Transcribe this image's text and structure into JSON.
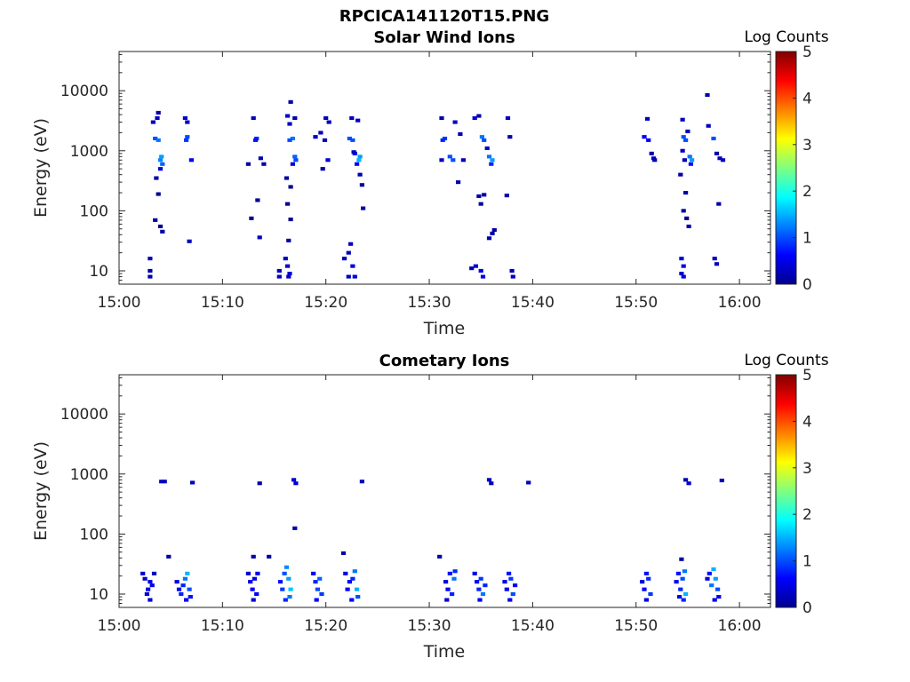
{
  "figure": {
    "title": "RPCICA141120T15.PNG"
  },
  "colorbar": {
    "label": "Log Counts",
    "ticks": [
      "0",
      "1",
      "2",
      "3",
      "4",
      "5"
    ],
    "range": [
      0,
      5
    ],
    "colormap": "jet",
    "colors": [
      "#00008f",
      "#0000ff",
      "#00ffff",
      "#ffff00",
      "#ff0000",
      "#800000"
    ]
  },
  "chart_data": [
    {
      "type": "heatmap",
      "title": "Solar Wind Ions",
      "xlabel": "Time",
      "ylabel": "Energy (eV)",
      "x_ticks": [
        "15:00",
        "15:10",
        "15:20",
        "15:30",
        "15:40",
        "15:50",
        "16:00"
      ],
      "y_ticks": [
        "10",
        "100",
        "1000",
        "10000"
      ],
      "y_scale": "log",
      "xlim_minutes": [
        0,
        63
      ],
      "ylim": [
        6,
        45000
      ],
      "cells": [
        [
          3.0,
          16,
          0.3
        ],
        [
          3.0,
          8,
          0.2
        ],
        [
          3.0,
          10,
          0.2
        ],
        [
          3.5,
          1600,
          1.0
        ],
        [
          3.8,
          1500,
          1.2
        ],
        [
          3.7,
          3500,
          0.3
        ],
        [
          3.3,
          3000,
          0.3
        ],
        [
          3.8,
          4300,
          0.2
        ],
        [
          4.1,
          800,
          1.4
        ],
        [
          4.0,
          700,
          1.3
        ],
        [
          4.2,
          600,
          1.1
        ],
        [
          4.0,
          500,
          0.5
        ],
        [
          3.6,
          350,
          0.2
        ],
        [
          3.8,
          190,
          0.1
        ],
        [
          3.5,
          70,
          0.1
        ],
        [
          4.0,
          55,
          0.1
        ],
        [
          4.2,
          45,
          0.2
        ],
        [
          6.4,
          3500,
          0.4
        ],
        [
          6.6,
          3000,
          0.3
        ],
        [
          6.6,
          1700,
          1.0
        ],
        [
          6.5,
          1500,
          0.9
        ],
        [
          7.0,
          700,
          0.6
        ],
        [
          6.8,
          31,
          0.3
        ],
        [
          13.0,
          3500,
          0.3
        ],
        [
          13.3,
          1600,
          0.8
        ],
        [
          13.2,
          1500,
          0.7
        ],
        [
          12.5,
          600,
          0.2
        ],
        [
          13.7,
          750,
          0.3
        ],
        [
          14.0,
          600,
          0.2
        ],
        [
          13.4,
          150,
          0.1
        ],
        [
          12.8,
          75,
          0.1
        ],
        [
          13.6,
          36,
          0.3
        ],
        [
          15.5,
          10,
          0.3
        ],
        [
          15.5,
          8,
          0.3
        ],
        [
          16.3,
          3800,
          0.4
        ],
        [
          16.5,
          2800,
          0.3
        ],
        [
          16.6,
          6500,
          0.2
        ],
        [
          16.8,
          1600,
          1.2
        ],
        [
          16.5,
          1500,
          1.0
        ],
        [
          17.0,
          3500,
          0.2
        ],
        [
          17.0,
          800,
          1.1
        ],
        [
          17.1,
          700,
          1.0
        ],
        [
          16.8,
          600,
          0.4
        ],
        [
          16.2,
          350,
          0.2
        ],
        [
          16.6,
          250,
          0.1
        ],
        [
          16.3,
          130,
          0.1
        ],
        [
          16.6,
          72,
          0.1
        ],
        [
          16.4,
          32,
          0.2
        ],
        [
          16.1,
          16,
          0.3
        ],
        [
          16.3,
          12,
          0.4
        ],
        [
          16.5,
          9,
          0.4
        ],
        [
          16.4,
          8,
          0.4
        ],
        [
          20.0,
          3500,
          0.3
        ],
        [
          20.3,
          3000,
          0.3
        ],
        [
          19.5,
          2000,
          0.3
        ],
        [
          19.9,
          1500,
          0.3
        ],
        [
          19.0,
          1700,
          0.3
        ],
        [
          20.2,
          700,
          0.4
        ],
        [
          19.7,
          500,
          0.2
        ],
        [
          22.5,
          3500,
          0.3
        ],
        [
          22.3,
          1600,
          1.0
        ],
        [
          22.6,
          1500,
          1.0
        ],
        [
          23.1,
          3200,
          0.3
        ],
        [
          22.8,
          900,
          0.6
        ],
        [
          23.3,
          800,
          1.4
        ],
        [
          23.2,
          700,
          1.5
        ],
        [
          23.0,
          600,
          0.6
        ],
        [
          22.7,
          950,
          0.3
        ],
        [
          23.3,
          400,
          0.2
        ],
        [
          23.5,
          270,
          0.2
        ],
        [
          23.6,
          110,
          0.2
        ],
        [
          21.8,
          16,
          0.3
        ],
        [
          22.2,
          20,
          0.3
        ],
        [
          22.4,
          28,
          0.3
        ],
        [
          22.6,
          12,
          0.4
        ],
        [
          22.8,
          8,
          0.4
        ],
        [
          22.2,
          8,
          0.3
        ],
        [
          31.2,
          3500,
          0.2
        ],
        [
          31.5,
          1600,
          0.9
        ],
        [
          31.3,
          1500,
          0.8
        ],
        [
          31.2,
          700,
          0.3
        ],
        [
          32.0,
          800,
          1.0
        ],
        [
          32.3,
          700,
          1.0
        ],
        [
          32.5,
          3000,
          0.3
        ],
        [
          33.0,
          1900,
          0.3
        ],
        [
          32.8,
          300,
          0.2
        ],
        [
          33.3,
          700,
          0.3
        ],
        [
          34.4,
          3500,
          0.4
        ],
        [
          34.8,
          3800,
          0.2
        ],
        [
          35.1,
          1700,
          1.2
        ],
        [
          35.3,
          1500,
          1.0
        ],
        [
          35.6,
          1100,
          0.4
        ],
        [
          35.8,
          800,
          1.2
        ],
        [
          36.1,
          700,
          1.4
        ],
        [
          36.0,
          600,
          0.8
        ],
        [
          37.6,
          3500,
          0.3
        ],
        [
          37.8,
          1700,
          0.2
        ],
        [
          34.8,
          175,
          0.2
        ],
        [
          35.0,
          130,
          0.2
        ],
        [
          35.3,
          185,
          0.2
        ],
        [
          37.5,
          180,
          0.2
        ],
        [
          35.8,
          35,
          0.2
        ],
        [
          36.1,
          42,
          0.2
        ],
        [
          36.3,
          48,
          0.2
        ],
        [
          34.1,
          11,
          0.3
        ],
        [
          34.5,
          12,
          0.4
        ],
        [
          35.0,
          10,
          0.5
        ],
        [
          35.2,
          8,
          0.5
        ],
        [
          38.0,
          10,
          0.3
        ],
        [
          38.1,
          8,
          0.3
        ],
        [
          51.1,
          3400,
          0.3
        ],
        [
          50.8,
          1700,
          0.6
        ],
        [
          51.2,
          1500,
          0.6
        ],
        [
          51.5,
          900,
          0.2
        ],
        [
          51.7,
          750,
          0.3
        ],
        [
          51.8,
          700,
          0.3
        ],
        [
          54.5,
          3300,
          0.3
        ],
        [
          54.6,
          1700,
          1.0
        ],
        [
          54.8,
          1500,
          1.0
        ],
        [
          55.0,
          2100,
          0.3
        ],
        [
          54.5,
          1000,
          0.3
        ],
        [
          55.2,
          800,
          1.2
        ],
        [
          55.4,
          700,
          1.4
        ],
        [
          55.3,
          600,
          0.7
        ],
        [
          54.7,
          700,
          0.3
        ],
        [
          54.3,
          400,
          0.2
        ],
        [
          54.8,
          200,
          0.2
        ],
        [
          54.6,
          100,
          0.2
        ],
        [
          54.9,
          75,
          0.1
        ],
        [
          55.1,
          55,
          0.2
        ],
        [
          54.4,
          16,
          0.4
        ],
        [
          54.6,
          12,
          0.5
        ],
        [
          54.4,
          9,
          0.4
        ],
        [
          54.6,
          8,
          0.5
        ],
        [
          57.0,
          2600,
          0.3
        ],
        [
          57.5,
          1600,
          1.0
        ],
        [
          57.8,
          900,
          0.2
        ],
        [
          58.1,
          750,
          0.3
        ],
        [
          58.4,
          700,
          0.3
        ],
        [
          56.9,
          8500,
          0.2
        ],
        [
          58.0,
          130,
          0.2
        ],
        [
          57.6,
          16,
          0.3
        ],
        [
          57.8,
          13,
          0.3
        ]
      ]
    },
    {
      "type": "heatmap",
      "title": "Cometary Ions",
      "xlabel": "Time",
      "ylabel": "Energy (eV)",
      "x_ticks": [
        "15:00",
        "15:10",
        "15:20",
        "15:30",
        "15:40",
        "15:50",
        "16:00"
      ],
      "y_ticks": [
        "10",
        "100",
        "1000",
        "10000"
      ],
      "y_scale": "log",
      "xlim_minutes": [
        0,
        63
      ],
      "ylim": [
        6,
        45000
      ],
      "cells": [
        [
          4.1,
          750,
          0.3
        ],
        [
          4.4,
          750,
          0.3
        ],
        [
          7.1,
          720,
          0.3
        ],
        [
          13.6,
          700,
          0.2
        ],
        [
          16.9,
          800,
          0.4
        ],
        [
          17.1,
          700,
          0.4
        ],
        [
          17.0,
          125,
          0.2
        ],
        [
          23.5,
          750,
          0.3
        ],
        [
          35.8,
          800,
          0.3
        ],
        [
          36.0,
          700,
          0.3
        ],
        [
          39.6,
          720,
          0.3
        ],
        [
          54.8,
          800,
          0.3
        ],
        [
          55.1,
          700,
          0.4
        ],
        [
          58.3,
          780,
          0.3
        ],
        [
          4.8,
          42,
          0.2
        ],
        [
          14.5,
          42,
          0.2
        ],
        [
          31.0,
          42,
          0.2
        ],
        [
          13.0,
          42,
          0.2
        ],
        [
          21.7,
          48,
          0.2
        ],
        [
          54.4,
          38,
          0.2
        ],
        [
          2.3,
          22,
          0.4
        ],
        [
          2.5,
          18,
          0.4
        ],
        [
          2.8,
          12,
          0.5
        ],
        [
          3.0,
          16,
          0.5
        ],
        [
          3.2,
          14,
          0.5
        ],
        [
          3.0,
          8,
          0.4
        ],
        [
          2.7,
          10,
          0.4
        ],
        [
          3.4,
          22,
          0.3
        ],
        [
          5.6,
          16,
          0.5
        ],
        [
          5.8,
          12,
          0.6
        ],
        [
          6.0,
          10,
          0.8
        ],
        [
          6.2,
          14,
          0.8
        ],
        [
          6.4,
          18,
          1.2
        ],
        [
          6.6,
          22,
          1.5
        ],
        [
          6.8,
          12,
          1.0
        ],
        [
          6.5,
          8,
          0.6
        ],
        [
          6.9,
          9,
          0.7
        ],
        [
          12.5,
          22,
          0.4
        ],
        [
          12.7,
          16,
          0.5
        ],
        [
          12.9,
          12,
          0.6
        ],
        [
          13.1,
          18,
          0.5
        ],
        [
          13.3,
          10,
          0.6
        ],
        [
          13.0,
          8,
          0.4
        ],
        [
          13.4,
          22,
          0.5
        ],
        [
          15.6,
          16,
          0.7
        ],
        [
          15.8,
          12,
          0.9
        ],
        [
          16.0,
          22,
          1.0
        ],
        [
          16.2,
          28,
          1.3
        ],
        [
          16.4,
          18,
          1.4
        ],
        [
          16.6,
          12,
          1.6
        ],
        [
          16.5,
          9,
          1.2
        ],
        [
          16.1,
          8,
          0.8
        ],
        [
          18.8,
          22,
          0.6
        ],
        [
          19.0,
          16,
          0.8
        ],
        [
          19.2,
          12,
          1.0
        ],
        [
          19.4,
          18,
          1.1
        ],
        [
          19.6,
          10,
          0.9
        ],
        [
          19.1,
          8,
          0.6
        ],
        [
          21.9,
          22,
          0.5
        ],
        [
          22.1,
          12,
          0.6
        ],
        [
          22.3,
          16,
          0.6
        ],
        [
          22.6,
          18,
          0.8
        ],
        [
          22.8,
          24,
          1.2
        ],
        [
          23.0,
          12,
          1.5
        ],
        [
          23.1,
          9,
          1.0
        ],
        [
          22.5,
          8,
          0.6
        ],
        [
          31.6,
          16,
          0.5
        ],
        [
          31.8,
          12,
          0.6
        ],
        [
          32.0,
          22,
          0.7
        ],
        [
          32.2,
          10,
          0.8
        ],
        [
          32.4,
          18,
          1.2
        ],
        [
          32.5,
          24,
          0.8
        ],
        [
          31.7,
          8,
          0.4
        ],
        [
          34.4,
          22,
          0.5
        ],
        [
          34.6,
          16,
          0.6
        ],
        [
          34.8,
          12,
          0.8
        ],
        [
          35.0,
          18,
          0.9
        ],
        [
          35.2,
          10,
          1.2
        ],
        [
          35.4,
          14,
          0.8
        ],
        [
          34.9,
          8,
          0.5
        ],
        [
          37.3,
          16,
          0.5
        ],
        [
          37.5,
          12,
          0.6
        ],
        [
          37.7,
          22,
          0.7
        ],
        [
          37.9,
          18,
          0.9
        ],
        [
          38.1,
          10,
          1.0
        ],
        [
          38.3,
          14,
          0.6
        ],
        [
          37.8,
          8,
          0.5
        ],
        [
          50.6,
          16,
          0.5
        ],
        [
          50.8,
          12,
          0.6
        ],
        [
          51.0,
          22,
          0.7
        ],
        [
          51.2,
          18,
          0.8
        ],
        [
          51.4,
          10,
          0.9
        ],
        [
          51.0,
          8,
          0.5
        ],
        [
          53.9,
          16,
          0.6
        ],
        [
          54.1,
          22,
          0.7
        ],
        [
          54.3,
          12,
          0.8
        ],
        [
          54.5,
          18,
          1.0
        ],
        [
          54.7,
          24,
          1.2
        ],
        [
          54.8,
          10,
          1.5
        ],
        [
          54.6,
          8,
          0.8
        ],
        [
          54.2,
          9,
          0.6
        ],
        [
          56.9,
          18,
          0.5
        ],
        [
          57.1,
          22,
          0.7
        ],
        [
          57.3,
          14,
          1.2
        ],
        [
          57.5,
          26,
          1.5
        ],
        [
          57.7,
          18,
          1.4
        ],
        [
          57.9,
          12,
          1.0
        ],
        [
          58.0,
          9,
          0.6
        ],
        [
          57.6,
          8,
          0.5
        ]
      ]
    }
  ]
}
